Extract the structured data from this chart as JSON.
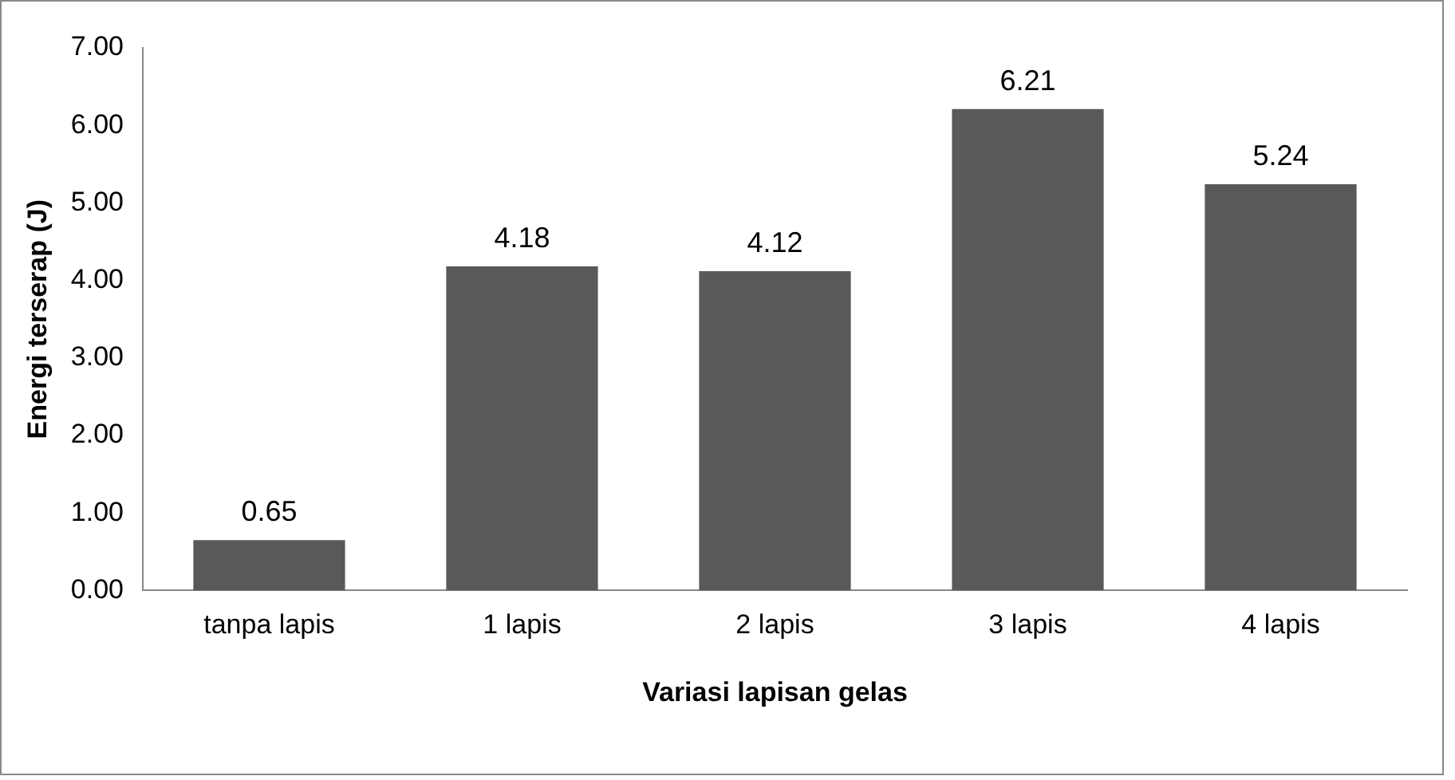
{
  "chart_data": {
    "type": "bar",
    "xlabel": "Variasi lapisan gelas",
    "ylabel": "Energi terserap (J)",
    "categories": [
      "tanpa lapis",
      "1 lapis",
      "2 lapis",
      "3 lapis",
      "4 lapis"
    ],
    "values": [
      0.65,
      4.18,
      4.12,
      6.21,
      5.24
    ],
    "color": "#595959",
    "ylim": [
      0,
      7
    ],
    "yticks": [
      {
        "value": 0,
        "label": "0.00"
      },
      {
        "value": 1,
        "label": "1.00"
      },
      {
        "value": 2,
        "label": "2.00"
      },
      {
        "value": 3,
        "label": "3.00"
      },
      {
        "value": 4,
        "label": "4.00"
      },
      {
        "value": 5,
        "label": "5.00"
      },
      {
        "value": 6,
        "label": "6.00"
      },
      {
        "value": 7,
        "label": "7.00"
      }
    ],
    "grid": false,
    "legend": false,
    "data_labels": true
  }
}
